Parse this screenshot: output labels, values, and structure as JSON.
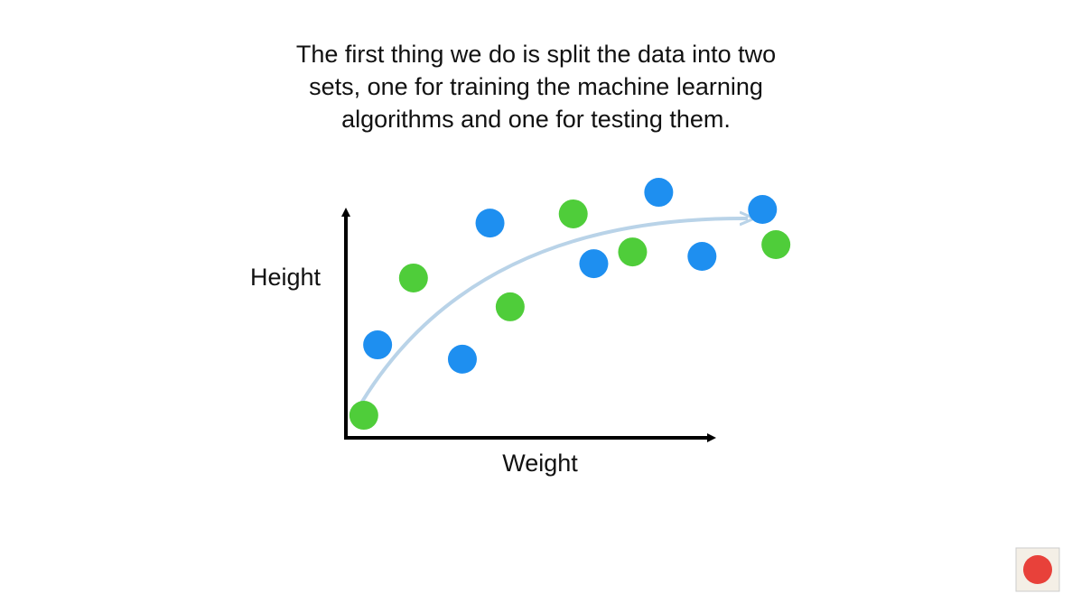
{
  "chart_data": {
    "type": "scatter",
    "title_lines": [
      "The first thing we do is split the data into two",
      "sets, one for training the machine learning",
      "algorithms and one for testing them."
    ],
    "y_label": "Height",
    "x_label": "Weight",
    "xlim": [
      0,
      120
    ],
    "ylim": [
      0,
      110
    ],
    "series": [
      {
        "color": "#1e8ff0",
        "x": [
          8.5,
          31.2,
          38.6,
          66.4,
          83.8,
          95.4,
          111.6
        ],
        "values": [
          39.6,
          33.5,
          91.5,
          74.2,
          104.6,
          77.3,
          97.3
        ]
      },
      {
        "color": "#4fcd3a",
        "x": [
          4.8,
          18.1,
          44.0,
          60.9,
          76.8,
          115.2
        ],
        "values": [
          9.6,
          68.1,
          55.8,
          95.4,
          79.2,
          82.3
        ]
      }
    ]
  }
}
